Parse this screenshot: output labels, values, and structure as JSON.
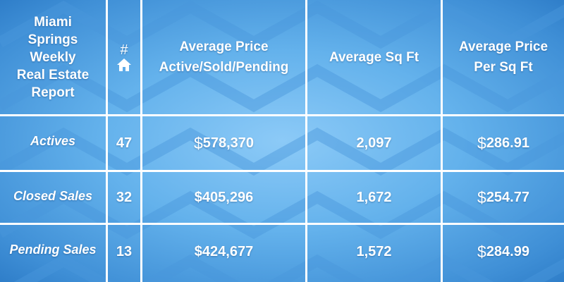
{
  "colors": {
    "background_center": "#8ccaf7",
    "background_edge": "#2f7ec9",
    "grid_lines": "#ffffff",
    "text": "#ffffff"
  },
  "header": {
    "title_lines": [
      "Miami",
      "Springs",
      "Weekly",
      "Real Estate",
      "Report"
    ],
    "count_symbol": "#",
    "count_icon": "home-icon",
    "avg_price_lines": [
      "Average Price",
      "Active/Sold/Pending"
    ],
    "avg_sqft": "Average Sq Ft",
    "price_per_sqft_lines": [
      "Average Price",
      "Per Sq Ft"
    ]
  },
  "rows": [
    {
      "label": "Actives",
      "count": "47",
      "dollar": "$",
      "avg_price": "578,370",
      "avg_sqft": "2,097",
      "ppsf_dollar": "$",
      "price_per_sqft": "286.91"
    },
    {
      "label": "Closed Sales",
      "count": "32",
      "dollar": "$",
      "avg_price": "405,296",
      "avg_sqft": "1,672",
      "ppsf_dollar": "$",
      "price_per_sqft": "254.77"
    },
    {
      "label": "Pending Sales",
      "count": "13",
      "dollar": "$",
      "avg_price": "424,677",
      "avg_sqft": "1,572",
      "ppsf_dollar": "$",
      "price_per_sqft": "284.99"
    }
  ]
}
